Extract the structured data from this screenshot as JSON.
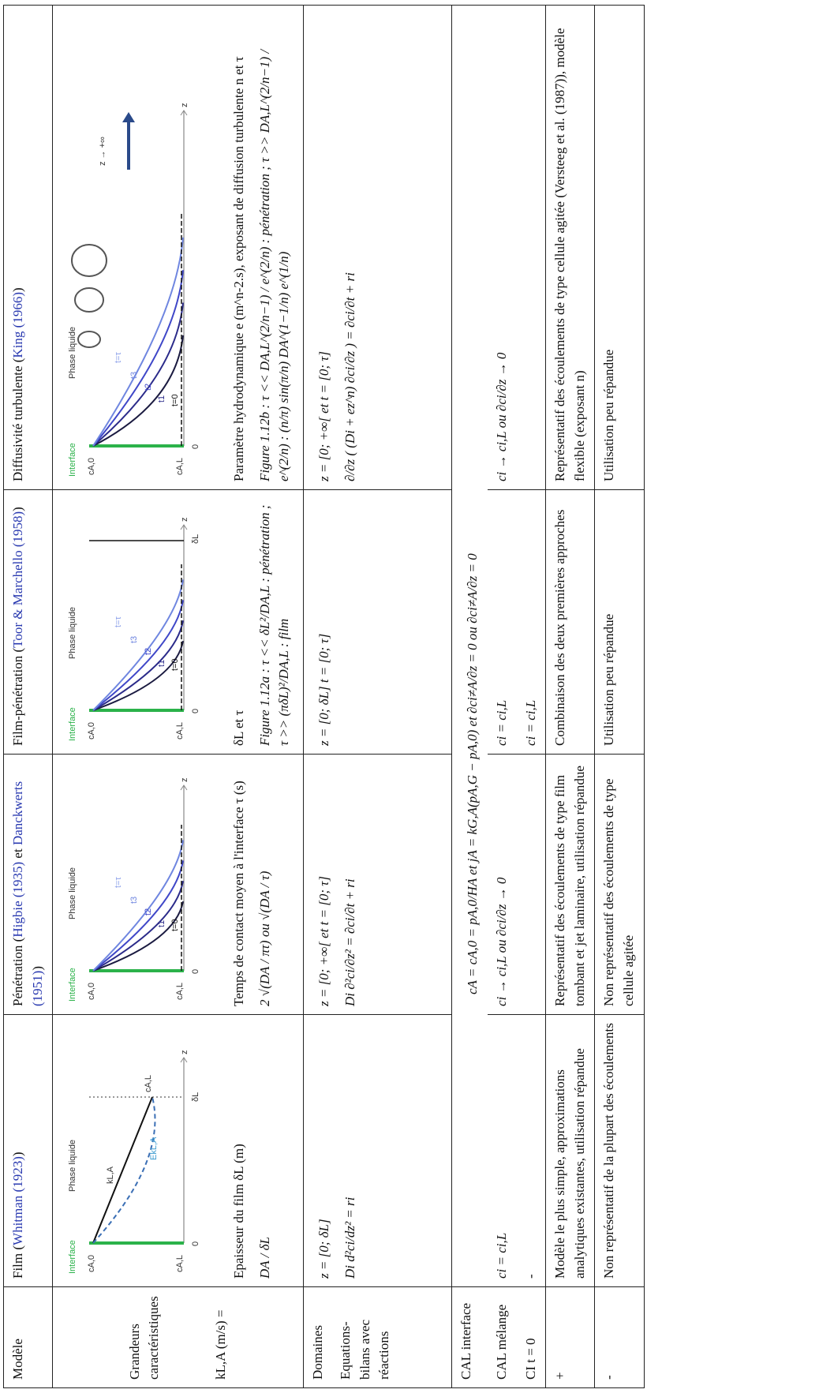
{
  "table": {
    "header": [
      [
        "Modèle"
      ],
      [
        "Film (",
        "Whitman (1923)",
        ")"
      ],
      [
        "Pénétration (",
        "Higbie (1935)",
        " et ",
        "Danckwerts (1951)",
        ")"
      ],
      [
        "Film-pénétration (",
        "Toor & Marchello (1958)",
        ")"
      ],
      [
        "Diffusivité turbulente (",
        "King (1966)",
        ")"
      ]
    ],
    "diagrams": [
      {
        "interface": "Interface",
        "phase": "Phase liquide",
        "c0": "cA,0",
        "cL": "cA,L",
        "zero": "0",
        "z": "z",
        "k": "kL,A",
        "ek": "EkL,A",
        "delta": "δL"
      },
      {
        "interface": "Interface",
        "phase": "Phase liquide",
        "c0": "cA,0",
        "cL": "cA,L",
        "zero": "0",
        "z": "z",
        "t0": "t=0",
        "t1": "t1",
        "t2": "t2",
        "t3": "t3",
        "tau": "t=τ"
      },
      {
        "interface": "Interface",
        "phase": "Phase liquide",
        "c0": "cA,0",
        "cL": "cA,L",
        "zero": "0",
        "z": "z",
        "t0": "t=0",
        "t1": "t1",
        "t2": "t2",
        "t3": "t3",
        "tau": "t=τ",
        "delta": "δL"
      },
      {
        "interface": "Interface",
        "phase": "Phase liquide",
        "c0": "cA,0",
        "cL": "cA,L",
        "zero": "0",
        "z": "z",
        "t0": "t=0",
        "t1": "t1",
        "t2": "t2",
        "t3": "t3",
        "tau": "t=τ",
        "inf": "z → +∞"
      }
    ],
    "grandeurs": {
      "label": "Grandeurs caractéristiques",
      "values": [
        "Epaisseur du film δL (m)",
        "Temps de contact moyen à l'interface τ (s)",
        "δL et τ",
        "Paramètre hydrodynamique e (m^n-2.s), exposant de diffusion turbulente n et τ"
      ]
    },
    "kla": {
      "label": "kL,A (m/s) =",
      "values": [
        "DA / δL",
        "2 √(DA / πτ)  ou  √(DA / τ)",
        "Figure 1.12a : τ << δL²/DA,L : pénétration ; τ >> (πδL)²/DA,L : film",
        "Figure 1.12b : τ << DA,L^(2/n−1) / e^(2/n) : pénétration ; τ >> DA,L^(2/n−1) / e^(2/n) : (n/π) sin(π/n) DA^(1−1/n) e^(1/n)"
      ]
    },
    "domaines": {
      "label": "Domaines",
      "values": [
        "z = [0; δL]",
        "z = [0; +∞[ et t = [0; τ]",
        "z = [0; δL] t = [0; τ]",
        "z = [0; +∞[ et t = [0; τ]"
      ]
    },
    "equations": {
      "label": "Equations-bilans avec réactions",
      "values": [
        "Di d²ci/dz² = ri",
        "Di ∂²ci/∂z² = ∂ci/∂t + ri",
        null,
        "∂/∂z ( (Di + ez^n) ∂ci/∂z ) = ∂ci/∂t + ri"
      ]
    },
    "cal_interface": {
      "label": "CAL interface",
      "value": "cA = cA,0 = pA,0/HA  et  jA = kG,A(pA,G − pA,0)  et  ∂ci≠A/∂z = 0  ou  ∂ci≠A/∂z = 0"
    },
    "cal_melange": {
      "label": "CAL mélange",
      "values": [
        "ci = ci,L",
        "ci → ci,L ou ∂ci/∂z → 0",
        "ci = ci,L",
        "ci → ci,L ou ∂ci/∂z → 0"
      ]
    },
    "ci": {
      "label": "CI t = 0",
      "values": [
        "-",
        null,
        "ci = ci,L",
        null
      ]
    },
    "plus": {
      "label": "+",
      "values": [
        "Modèle le plus simple, approximations analytiques existantes, utilisation répandue",
        "Représentatif des écoulements de type film tombant et jet laminaire, utilisation répandue",
        "Combinaison des deux premières approches",
        "Représentatif des écoulements de type cellule agitée (Versteeg et al. (1987)), modèle flexible (exposant n)"
      ]
    },
    "minus": {
      "label": "-",
      "values": [
        "Non représentatif de la plupart des écoulements",
        "Non représentatif des écoulements de type cellule agitée",
        "Utilisation peu répandue",
        "Utilisation peu répandue"
      ]
    }
  }
}
